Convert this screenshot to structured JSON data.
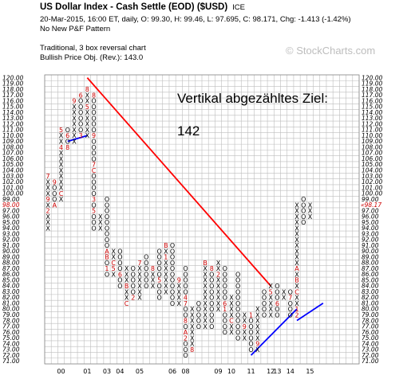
{
  "header": {
    "title": "US Dollar Index - Cash Settle (EOD) ($USD)",
    "exchange": "ICE",
    "line1": "20-Mar-2015, 16:00 ET, daily, O: 99.30, H: 99.46, L: 97.695, C: 98.171, Chg: -1.413 (-1.42%)",
    "line2": "No New P&F Pattern",
    "line3": "Traditional, 3 box reversal chart",
    "line4": "Bullish Price Obj. (Rev.): 143.0",
    "watermark": "© StockCharts.com"
  },
  "annotations": {
    "note1": "Vertikal abgezähltes Ziel:",
    "note2": "142"
  },
  "chart_data": {
    "type": "point-and-figure",
    "box_size": 1.0,
    "reversal": 3,
    "ylim": [
      71,
      120
    ],
    "yticks": [
      "120.00",
      "119.00",
      "118.00",
      "117.00",
      "116.00",
      "115.00",
      "114.00",
      "113.00",
      "112.00",
      "111.00",
      "110.00",
      "109.00",
      "108.00",
      "107.00",
      "106.00",
      "105.00",
      "104.00",
      "103.00",
      "102.00",
      "101.00",
      "100.00",
      "99.00",
      "98.00",
      "97.00",
      "96.00",
      "95.00",
      "94.00",
      "93.00",
      "92.00",
      "91.00",
      "90.00",
      "89.00",
      "88.00",
      "87.00",
      "86.00",
      "85.00",
      "84.00",
      "83.00",
      "82.00",
      "81.00",
      "80.00",
      "79.00",
      "78.00",
      "77.00",
      "76.00",
      "75.00",
      "74.00",
      "73.00",
      "72.00",
      "71.00"
    ],
    "current_price": "98.17",
    "current_price_left": "98.00",
    "x_year_labels": [
      {
        "col": 2,
        "label": "00"
      },
      {
        "col": 6,
        "label": "01"
      },
      {
        "col": 9,
        "label": "03"
      },
      {
        "col": 11,
        "label": "04"
      },
      {
        "col": 14,
        "label": "05"
      },
      {
        "col": 19,
        "label": "06"
      },
      {
        "col": 21,
        "label": "08"
      },
      {
        "col": 26,
        "label": "09"
      },
      {
        "col": 28,
        "label": "10"
      },
      {
        "col": 31,
        "label": "11"
      },
      {
        "col": 34,
        "label": "12"
      },
      {
        "col": 35,
        "label": "13"
      },
      {
        "col": 37,
        "label": "14"
      },
      {
        "col": 40,
        "label": "15"
      }
    ],
    "columns": [
      {
        "col": 0,
        "type": "X",
        "low": 94,
        "high": 103,
        "marks": {
          "103": "7",
          "99": "9",
          "97": "2"
        }
      },
      {
        "col": 1,
        "type": "O",
        "low": 98,
        "high": 102,
        "marks": {
          "102": "9",
          "98": "A"
        }
      },
      {
        "col": 2,
        "type": "X",
        "low": 99,
        "high": 111,
        "marks": {
          "111": "5",
          "108": "4",
          "100": "C"
        }
      },
      {
        "col": 3,
        "type": "O",
        "low": 108,
        "high": 111,
        "marks": {
          "110": "6",
          "108": "8"
        }
      },
      {
        "col": 4,
        "type": "X",
        "low": 109,
        "high": 116,
        "marks": {
          "116": "9"
        }
      },
      {
        "col": 5,
        "type": "O",
        "low": 110,
        "high": 117,
        "marks": {
          "117": "6",
          "110": "3"
        }
      },
      {
        "col": 6,
        "type": "X",
        "low": 110,
        "high": 118,
        "marks": {
          "118": "8",
          "115": "5"
        }
      },
      {
        "col": 7,
        "type": "O",
        "low": 94,
        "high": 117,
        "marks": {
          "117": "8",
          "110": "9",
          "105": "7",
          "104": "C",
          "99": "3",
          "97": "5"
        }
      },
      {
        "col": 8,
        "type": "X",
        "low": 94,
        "high": 96
      },
      {
        "col": 9,
        "type": "O",
        "low": 86,
        "high": 99,
        "marks": {
          "90": "A",
          "89": "B",
          "87": "1"
        }
      },
      {
        "col": 10,
        "type": "X",
        "low": 86,
        "high": 90,
        "marks": {
          "88": "C",
          "87": "5"
        }
      },
      {
        "col": 11,
        "type": "O",
        "low": 84,
        "high": 90,
        "marks": {
          "86": "6"
        }
      },
      {
        "col": 12,
        "type": "X",
        "low": 81,
        "high": 87,
        "marks": {
          "84": "B",
          "81": "C"
        }
      },
      {
        "col": 13,
        "type": "O",
        "low": 82,
        "high": 87,
        "marks": {
          "82": "2"
        }
      },
      {
        "col": 14,
        "type": "X",
        "low": 82,
        "high": 88,
        "marks": {
          "88": "7"
        }
      },
      {
        "col": 15,
        "type": "O",
        "low": 84,
        "high": 89
      },
      {
        "col": 16,
        "type": "X",
        "low": 84,
        "high": 87,
        "marks": {
          "87": "8"
        }
      },
      {
        "col": 17,
        "type": "O",
        "low": 82,
        "high": 90,
        "marks": {
          "85": "5"
        }
      },
      {
        "col": 18,
        "type": "X",
        "low": 83,
        "high": 91,
        "marks": {
          "91": "B",
          "89": "1"
        }
      },
      {
        "col": 19,
        "type": "O",
        "low": 81,
        "high": 91
      },
      {
        "col": 20,
        "type": "X",
        "low": 81,
        "high": 85,
        "marks": {
          "85": "9"
        }
      },
      {
        "col": 21,
        "type": "O",
        "low": 72,
        "high": 87,
        "marks": {
          "82": "4",
          "81": "7",
          "78": "8",
          "76": "A",
          "75": "2"
        }
      },
      {
        "col": 22,
        "type": "X",
        "low": 73,
        "high": 80,
        "marks": {
          "73": "8"
        }
      },
      {
        "col": 23,
        "type": "O",
        "low": 77,
        "high": 81
      },
      {
        "col": 24,
        "type": "X",
        "low": 77,
        "high": 88,
        "marks": {
          "88": "B"
        }
      },
      {
        "col": 25,
        "type": "O",
        "low": 77,
        "high": 87,
        "marks": {
          "87": "8"
        }
      },
      {
        "col": 26,
        "type": "X",
        "low": 80,
        "high": 88,
        "marks": {
          "86": "2"
        }
      },
      {
        "col": 27,
        "type": "O",
        "low": 76,
        "high": 87,
        "marks": {
          "81": "6",
          "80": "1"
        }
      },
      {
        "col": 28,
        "type": "X",
        "low": 76,
        "high": 82,
        "marks": {
          "78": "C"
        }
      },
      {
        "col": 29,
        "type": "O",
        "low": 75,
        "high": 86
      },
      {
        "col": 30,
        "type": "X",
        "low": 75,
        "high": 79,
        "marks": {
          "77": "9"
        }
      },
      {
        "col": 31,
        "type": "O",
        "low": 73,
        "high": 79,
        "marks": {
          "79": "1"
        }
      },
      {
        "col": 32,
        "type": "X",
        "low": 73,
        "high": 80,
        "marks": {
          "74": "9"
        }
      },
      {
        "col": 33,
        "type": "O",
        "low": 79,
        "high": 83
      },
      {
        "col": 34,
        "type": "X",
        "low": 79,
        "high": 84,
        "marks": {
          "83": "5"
        }
      },
      {
        "col": 35,
        "type": "O",
        "low": 79,
        "high": 84,
        "marks": {
          "81": "6"
        }
      },
      {
        "col": 36,
        "type": "X",
        "low": 82,
        "high": 83
      },
      {
        "col": 37,
        "type": "O",
        "low": 79,
        "high": 83,
        "marks": {
          "82": "7"
        }
      },
      {
        "col": 38,
        "type": "X",
        "low": 79,
        "high": 98,
        "marks": {
          "87": "A",
          "85": "B",
          "83": "C",
          "80": "1",
          "79": "2"
        }
      },
      {
        "col": 39,
        "type": "O",
        "low": 95,
        "high": 99
      },
      {
        "col": 40,
        "type": "X",
        "low": 96,
        "high": 98
      }
    ],
    "trendlines": [
      {
        "kind": "bearish-resistance",
        "color": "#ff0000",
        "from": {
          "col": 6,
          "price": 120
        },
        "to": {
          "col": 34,
          "price": 84
        }
      },
      {
        "kind": "bullish-support",
        "color": "#0000ff",
        "from": {
          "col": 3,
          "price": 109
        },
        "to": {
          "col": 6,
          "price": 110
        }
      },
      {
        "kind": "bullish-support",
        "color": "#0000ff",
        "from": {
          "col": 31,
          "price": 72
        },
        "to": {
          "col": 38,
          "price": 80
        }
      },
      {
        "kind": "bullish-support",
        "color": "#0000ff",
        "from": {
          "col": 38,
          "price": 78
        },
        "to": {
          "col": 42,
          "price": 81
        }
      }
    ],
    "colors": {
      "x": "#000000",
      "o": "#000000",
      "mark": "#cc0000",
      "price": "#cc0000",
      "grid": "#bdbdbd",
      "resistance": "#ff0000",
      "support": "#0000ff"
    }
  }
}
